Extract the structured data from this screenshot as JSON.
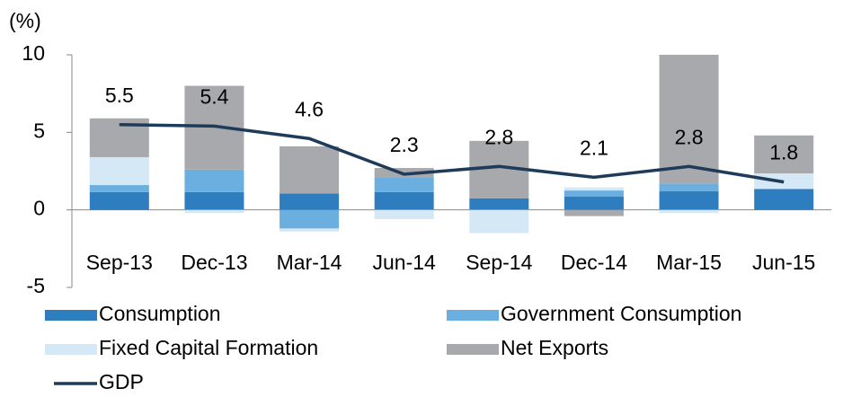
{
  "chart_data": {
    "type": "stacked_bar_line",
    "y_unit_label": "(%)",
    "categories": [
      "Sep-13",
      "Dec-13",
      "Mar-14",
      "Jun-14",
      "Sep-14",
      "Dec-14",
      "Mar-15",
      "Jun-15"
    ],
    "series": [
      {
        "name": "Consumption",
        "color": "#2e7dbf",
        "values": [
          1.15,
          1.15,
          1.05,
          1.15,
          0.75,
          0.85,
          1.2,
          1.35
        ]
      },
      {
        "name": "Government Consumption",
        "color": "#6baee0",
        "values": [
          0.45,
          1.45,
          -1.2,
          0.95,
          0,
          0.4,
          0.5,
          0
        ]
      },
      {
        "name": "Fixed Capital Formation",
        "color": "#d4e8f5",
        "values": [
          1.8,
          -0.2,
          -0.2,
          -0.6,
          -1.5,
          0.2,
          -0.2,
          1.0
        ]
      },
      {
        "name": "Net Exports",
        "color": "#a7a9ac",
        "values": [
          2.5,
          5.4,
          3.05,
          0.6,
          3.7,
          -0.4,
          8.3,
          2.45
        ]
      },
      {
        "name": "GDP",
        "type": "line",
        "color": "#1f3b5a",
        "values": [
          5.5,
          5.4,
          4.6,
          2.3,
          2.8,
          2.1,
          2.8,
          1.8
        ]
      }
    ],
    "ylim": [
      -5,
      10
    ],
    "yticks": [
      -5,
      0,
      5,
      10
    ],
    "grid": false,
    "legend": "bottom"
  }
}
